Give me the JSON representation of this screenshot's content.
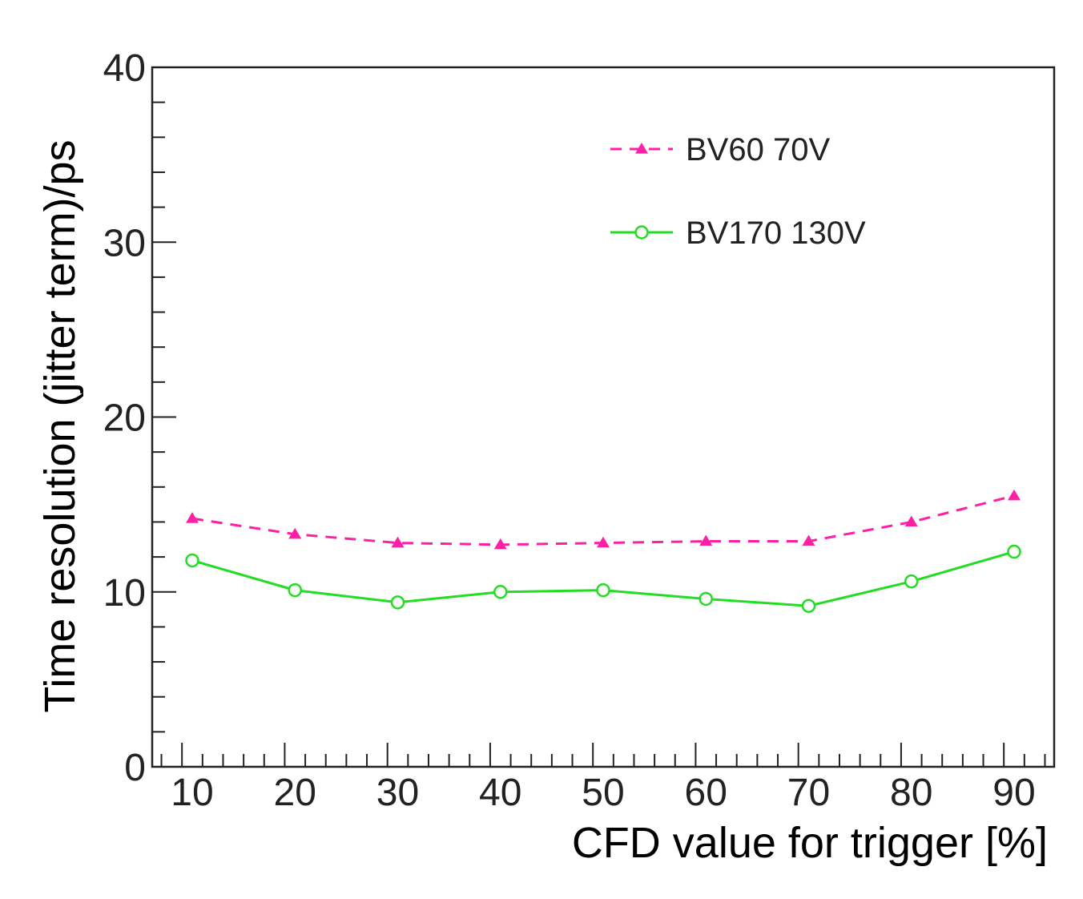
{
  "chart_data": {
    "type": "line",
    "title": "",
    "xlabel": "CFD value for trigger [%]",
    "ylabel": "Time resolution (jitter term)/ps",
    "x": [
      10,
      20,
      30,
      40,
      50,
      60,
      70,
      80,
      90
    ],
    "x_tick_labels": [
      "10",
      "20",
      "30",
      "40",
      "50",
      "60",
      "70",
      "80",
      "90"
    ],
    "y_tick_labels": [
      "0",
      "10",
      "20",
      "30",
      "40"
    ],
    "ylim": [
      0,
      40
    ],
    "legend_position": "top-right",
    "grid": false,
    "series": [
      {
        "name": "BV60 70V",
        "values": [
          14.2,
          13.3,
          12.8,
          12.7,
          12.8,
          12.9,
          12.9,
          14.0,
          15.5
        ],
        "color": "#ff1fa5",
        "line_style": "dashed",
        "marker": "triangle"
      },
      {
        "name": "BV170 130V",
        "values": [
          11.8,
          10.1,
          9.4,
          10.0,
          10.1,
          9.6,
          9.2,
          10.6,
          12.3
        ],
        "color": "#22dd22",
        "line_style": "solid",
        "marker": "open-circle"
      }
    ]
  }
}
